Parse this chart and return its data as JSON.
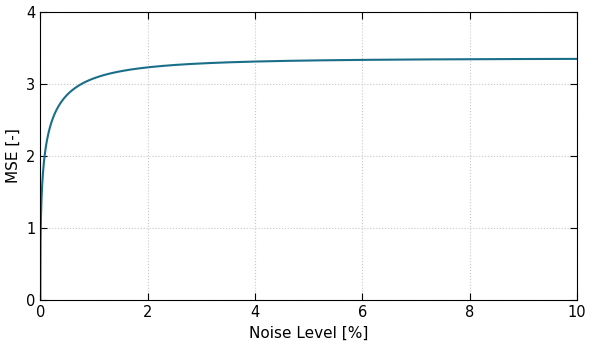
{
  "xlabel": "Noise Level [%]",
  "ylabel": "MSE [-]",
  "xlim": [
    0,
    10
  ],
  "ylim": [
    0,
    4
  ],
  "xticks": [
    0,
    2,
    4,
    6,
    8,
    10
  ],
  "yticks": [
    0,
    1,
    2,
    3,
    4
  ],
  "line_color": "#1a6e8a",
  "line_width": 1.5,
  "grid_color": "#c8c8c8",
  "background_color": "#ffffff",
  "curve_a": 3.35,
  "curve_k": 12.0,
  "curve_alpha": 0.25,
  "figsize": [
    5.92,
    3.46
  ],
  "dpi": 100
}
